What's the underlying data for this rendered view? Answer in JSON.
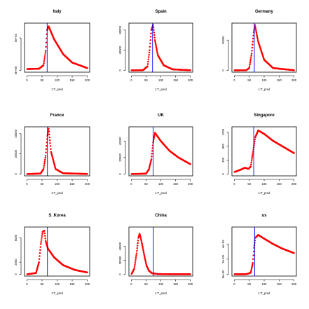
{
  "colors": {
    "curve": "#ff0000",
    "marker": "#0000ff",
    "frame": "#000000"
  },
  "chart_data": [
    {
      "type": "scatter",
      "title": "Italy",
      "xlabel": "1:T_pred",
      "ylabel": "",
      "xlim": [
        0,
        200
      ],
      "xticks": [
        0,
        50,
        100,
        150,
        200
      ],
      "ylim": [
        0,
        70000
      ],
      "yticks": [
        0,
        50000
      ],
      "ytick_labels": [
        "0e+00",
        "5e+04"
      ],
      "marker_x": 67,
      "x": [
        1,
        40,
        55,
        62,
        67,
        72,
        90,
        120,
        150,
        200
      ],
      "y": [
        2000,
        2500,
        8000,
        30000,
        62000,
        68000,
        48000,
        25000,
        12000,
        3500
      ]
    },
    {
      "type": "scatter",
      "title": "Spain",
      "xlabel": "1:T_pred",
      "ylabel": "",
      "xlim": [
        0,
        200
      ],
      "xticks": [
        0,
        50,
        100,
        150,
        200
      ],
      "ylim": [
        0,
        90000
      ],
      "yticks": [
        0,
        40000,
        80000
      ],
      "ytick_labels": [
        "0",
        "40000",
        "80000"
      ],
      "marker_x": 72,
      "x": [
        1,
        40,
        55,
        62,
        68,
        74,
        80,
        90,
        110,
        140,
        200
      ],
      "y": [
        0,
        500,
        8000,
        40000,
        80000,
        90000,
        60000,
        30000,
        10000,
        2000,
        200
      ]
    },
    {
      "type": "scatter",
      "title": "Germany",
      "xlabel": "1:T_pred",
      "ylabel": "",
      "xlim": [
        0,
        200
      ],
      "xticks": [
        0,
        50,
        100,
        150,
        200
      ],
      "ylim": [
        0,
        60000
      ],
      "yticks": [
        0,
        40000
      ],
      "ytick_labels": [
        "0",
        "40000"
      ],
      "marker_x": 67,
      "x": [
        1,
        40,
        50,
        58,
        65,
        69,
        80,
        100,
        130,
        200
      ],
      "y": [
        0,
        200,
        3000,
        22000,
        50000,
        60000,
        38000,
        14000,
        3000,
        200
      ]
    },
    {
      "type": "scatter",
      "title": "France",
      "xlabel": "1:T_pred",
      "ylabel": "",
      "xlim": [
        0,
        200
      ],
      "xticks": [
        0,
        50,
        100,
        150,
        200
      ],
      "ylim": [
        0,
        45000
      ],
      "yticks": [
        0,
        20000,
        40000
      ],
      "ytick_labels": [
        "0",
        "20000",
        "40000"
      ],
      "marker_x": 68,
      "x": [
        1,
        45,
        55,
        62,
        68,
        72,
        80,
        95,
        120,
        200
      ],
      "y": [
        0,
        500,
        5000,
        18000,
        38000,
        45000,
        22000,
        5000,
        800,
        100
      ]
    },
    {
      "type": "scatter",
      "title": "UK",
      "xlabel": "1:T_pred",
      "ylabel": "",
      "xlim": [
        0,
        200
      ],
      "xticks": [
        0,
        50,
        100,
        150,
        200
      ],
      "ylim": [
        0,
        55000
      ],
      "yticks": [
        0,
        20000,
        40000
      ],
      "ytick_labels": [
        "0",
        "20000",
        "40000"
      ],
      "marker_x": 74,
      "x": [
        1,
        50,
        60,
        68,
        74,
        80,
        100,
        130,
        160,
        200
      ],
      "y": [
        0,
        500,
        6000,
        18000,
        38000,
        50000,
        40000,
        28000,
        20000,
        12000
      ]
    },
    {
      "type": "scatter",
      "title": "Singapore",
      "xlabel": "1:T_pred",
      "ylabel": "",
      "xlim": [
        0,
        200
      ],
      "xticks": [
        0,
        50,
        100,
        150,
        200
      ],
      "ylim": [
        0,
        1300
      ],
      "yticks": [
        0,
        400,
        800,
        1200
      ],
      "ytick_labels": [
        "0",
        "400",
        "800",
        "1200"
      ],
      "marker_x": 65,
      "x": [
        1,
        20,
        35,
        48,
        55,
        62,
        70,
        80,
        100,
        130,
        160,
        200
      ],
      "y": [
        60,
        120,
        180,
        150,
        220,
        600,
        1050,
        1250,
        1150,
        950,
        800,
        600
      ]
    },
    {
      "type": "scatter",
      "title": "S_Korea",
      "xlabel": "1:T_pred",
      "ylabel": "",
      "xlim": [
        0,
        200
      ],
      "xticks": [
        0,
        50,
        100,
        150,
        200
      ],
      "ylim": [
        0,
        7500
      ],
      "yticks": [
        0,
        2000,
        6000
      ],
      "ytick_labels": [
        "0",
        "2000",
        "6000"
      ],
      "marker_x": 68,
      "x": [
        1,
        30,
        40,
        46,
        52,
        58,
        62,
        66,
        70,
        90,
        120,
        160,
        200
      ],
      "y": [
        0,
        200,
        2000,
        5000,
        7000,
        7200,
        5500,
        4800,
        4200,
        2800,
        1500,
        700,
        300
      ]
    },
    {
      "type": "scatter",
      "title": "China",
      "xlabel": "1:T_pred",
      "ylabel": "",
      "xlim": [
        0,
        200
      ],
      "xticks": [
        0,
        50,
        100,
        150,
        200
      ],
      "ylim": [
        0,
        65000
      ],
      "yticks": [
        0,
        20000,
        40000
      ],
      "ytick_labels": [
        "0",
        "20000",
        "40000"
      ],
      "marker_x": 75,
      "x": [
        1,
        10,
        18,
        24,
        28,
        32,
        38,
        45,
        52,
        60,
        70,
        90,
        120,
        200
      ],
      "y": [
        500,
        8000,
        30000,
        52000,
        58000,
        52000,
        40000,
        25000,
        12000,
        5000,
        1500,
        300,
        100,
        0
      ]
    },
    {
      "type": "scatter",
      "title": "us",
      "xlabel": "1:T_pred",
      "ylabel": "",
      "xlim": [
        0,
        200
      ],
      "xticks": [
        0,
        50,
        100,
        150,
        200
      ],
      "ylim": [
        0,
        600000
      ],
      "yticks": [
        0,
        200000,
        400000
      ],
      "ytick_labels": [
        "0e+00",
        "2e+05",
        "4e+05"
      ],
      "marker_x": 68,
      "x": [
        1,
        40,
        55,
        62,
        66,
        70,
        80,
        100,
        130,
        160,
        200
      ],
      "y": [
        0,
        1000,
        20000,
        150000,
        350000,
        480000,
        520000,
        470000,
        400000,
        340000,
        280000
      ]
    }
  ]
}
